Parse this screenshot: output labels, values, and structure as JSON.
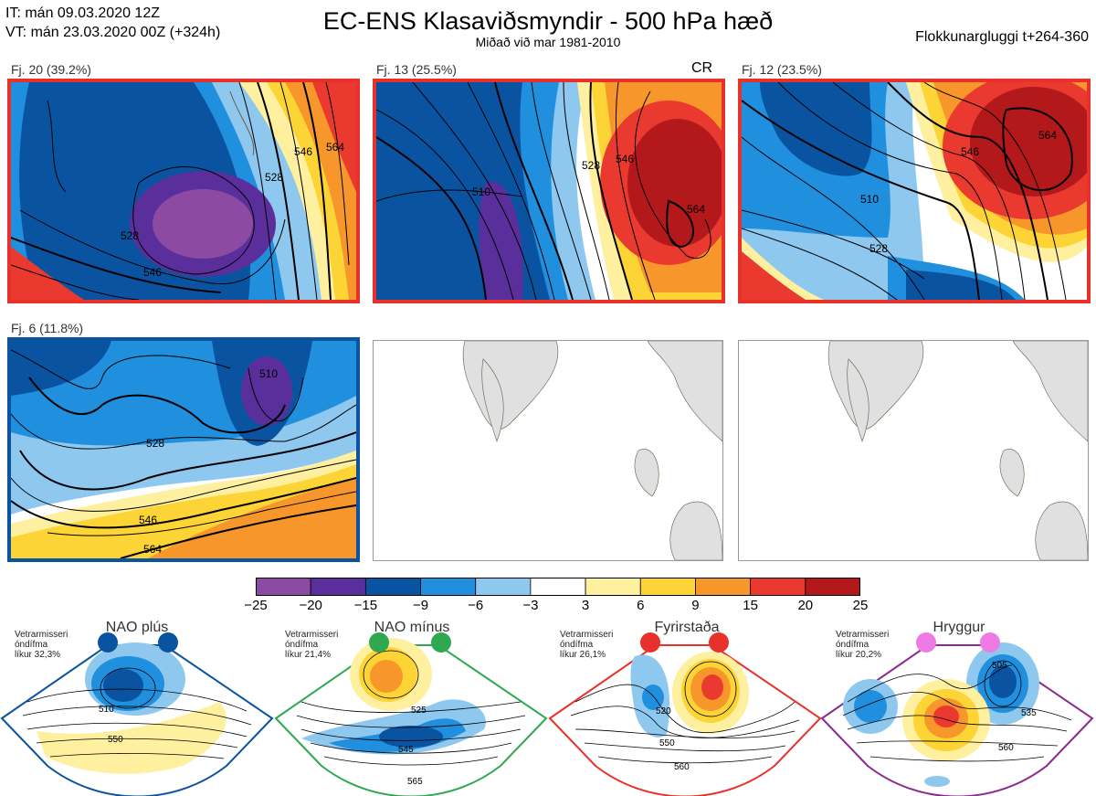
{
  "header": {
    "it_line": "IT: mán 09.03.2020 12Z",
    "vt_line": "VT: mán 23.03.2020 00Z  (+324h)",
    "title": "EC-ENS Klasaviðsmyndir - 500 hPa hæð",
    "subtitle": "Miðað við mar 1981-2010",
    "right_label": "Flokkunargluggi t+264-360"
  },
  "panels": [
    {
      "label": "Fj. 20 (39.2%)",
      "frame_color": "#e8312a",
      "contour_labels": [
        "528",
        "546",
        "564",
        "546",
        "528"
      ]
    },
    {
      "label": "Fj. 13 (25.5%)",
      "badge": "CR",
      "frame_color": "#e8312a",
      "contour_labels": [
        "510",
        "528",
        "546",
        "564"
      ]
    },
    {
      "label": "Fj. 12 (23.5%)",
      "frame_color": "#e8312a",
      "contour_labels": [
        "510",
        "528",
        "546",
        "564"
      ]
    },
    {
      "label": "Fj. 6 (11.8%)",
      "frame_color": "#0a53a0",
      "contour_labels": [
        "510",
        "528",
        "546",
        "564"
      ]
    }
  ],
  "colorbar": {
    "ticks": [
      "−25",
      "−20",
      "−15",
      "−9",
      "−6",
      "−3",
      "3",
      "6",
      "9",
      "15",
      "20",
      "25"
    ],
    "colors": [
      "#8d4aa3",
      "#5a2f9c",
      "#0a53a0",
      "#1f8fde",
      "#8ec8ee",
      "#ffffff",
      "#fff0a0",
      "#fdd435",
      "#f7962b",
      "#ea3a2f",
      "#b3181a"
    ]
  },
  "regimes": [
    {
      "name": "NAO plús",
      "stat_lines": [
        "Vetrarmisseri",
        "óndífma",
        "líkur 32,3%"
      ],
      "color": "#0a53a0",
      "contour_labels": [
        "510",
        "550"
      ]
    },
    {
      "name": "NAO mínus",
      "stat_lines": [
        "Vetrarmisseri",
        "óndífma",
        "líkur 21,4%"
      ],
      "color": "#2fa84f",
      "contour_labels": [
        "525",
        "545",
        "565"
      ]
    },
    {
      "name": "Fyrirstaða",
      "stat_lines": [
        "Vetrarmisseri",
        "óndífma",
        "líkur 26,1%"
      ],
      "color": "#e8312a",
      "contour_labels": [
        "520",
        "550",
        "560"
      ]
    },
    {
      "name": "Hryggur",
      "stat_lines": [
        "Vetrarmisseri",
        "óndífma",
        "líkur 20,2%"
      ],
      "color": "#8b2a8f",
      "contour_labels": [
        "505",
        "535",
        "560"
      ]
    }
  ]
}
